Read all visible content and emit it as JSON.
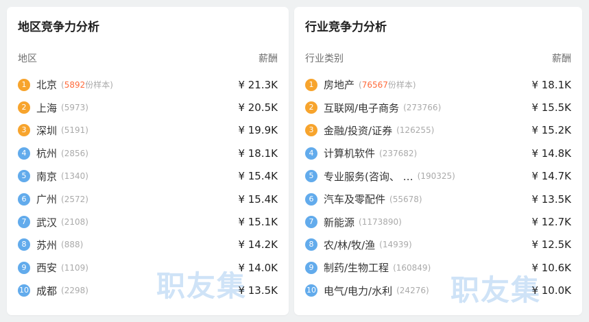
{
  "colors": {
    "page_bg": "#eff1f2",
    "panel_bg": "#ffffff",
    "title": "#1f1f1f",
    "header": "#6f6f6f",
    "name": "#333333",
    "count": "#aaaaaa",
    "salary": "#1f1f1f",
    "badge_orange": "#f7a42d",
    "badge_blue": "#62abec",
    "sample_hot": "#ff6a3a",
    "watermark": "#cfe3f7"
  },
  "format": {
    "count_open": "(",
    "count_close": ")"
  },
  "watermark_text": "职友集",
  "panels": [
    {
      "title": "地区竞争力分析",
      "col_name": "地区",
      "col_salary": "薪酬",
      "rows": [
        {
          "rank": "1",
          "name": "北京",
          "samples": "5892",
          "samples_suffix": "份样本",
          "salary": "¥ 21.3K",
          "badge": "orange"
        },
        {
          "rank": "2",
          "name": "上海",
          "samples": "5973",
          "samples_suffix": "",
          "salary": "¥ 20.5K",
          "badge": "orange"
        },
        {
          "rank": "3",
          "name": "深圳",
          "samples": "5191",
          "samples_suffix": "",
          "salary": "¥ 19.9K",
          "badge": "orange"
        },
        {
          "rank": "4",
          "name": "杭州",
          "samples": "2856",
          "samples_suffix": "",
          "salary": "¥ 18.1K",
          "badge": "blue"
        },
        {
          "rank": "5",
          "name": "南京",
          "samples": "1340",
          "samples_suffix": "",
          "salary": "¥ 15.4K",
          "badge": "blue"
        },
        {
          "rank": "6",
          "name": "广州",
          "samples": "2572",
          "samples_suffix": "",
          "salary": "¥ 15.4K",
          "badge": "blue"
        },
        {
          "rank": "7",
          "name": "武汉",
          "samples": "2108",
          "samples_suffix": "",
          "salary": "¥ 15.1K",
          "badge": "blue"
        },
        {
          "rank": "8",
          "name": "苏州",
          "samples": "888",
          "samples_suffix": "",
          "salary": "¥ 14.2K",
          "badge": "blue"
        },
        {
          "rank": "9",
          "name": "西安",
          "samples": "1109",
          "samples_suffix": "",
          "salary": "¥ 14.0K",
          "badge": "blue"
        },
        {
          "rank": "10",
          "name": "成都",
          "samples": "2298",
          "samples_suffix": "",
          "salary": "¥ 13.5K",
          "badge": "blue"
        }
      ]
    },
    {
      "title": "行业竞争力分析",
      "col_name": "行业类别",
      "col_salary": "薪酬",
      "rows": [
        {
          "rank": "1",
          "name": "房地产",
          "samples": "76567",
          "samples_suffix": "份样本",
          "salary": "¥ 18.1K",
          "badge": "orange"
        },
        {
          "rank": "2",
          "name": "互联网/电子商务",
          "samples": "273766",
          "samples_suffix": "",
          "salary": "¥ 15.5K",
          "badge": "orange"
        },
        {
          "rank": "3",
          "name": "金融/投资/证券",
          "samples": "126255",
          "samples_suffix": "",
          "salary": "¥ 15.2K",
          "badge": "orange"
        },
        {
          "rank": "4",
          "name": "计算机软件",
          "samples": "237682",
          "samples_suffix": "",
          "salary": "¥ 14.8K",
          "badge": "blue"
        },
        {
          "rank": "5",
          "name": "专业服务(咨询、 …  ",
          "samples": "190325",
          "samples_suffix": "",
          "salary": "¥ 14.7K",
          "badge": "blue"
        },
        {
          "rank": "6",
          "name": "汽车及零配件",
          "samples": "55678",
          "samples_suffix": "",
          "salary": "¥ 13.5K",
          "badge": "blue"
        },
        {
          "rank": "7",
          "name": "新能源",
          "samples": "1173890",
          "samples_suffix": "",
          "salary": "¥ 12.7K",
          "badge": "blue"
        },
        {
          "rank": "8",
          "name": "农/林/牧/渔",
          "samples": "14939",
          "samples_suffix": "",
          "salary": "¥ 12.5K",
          "badge": "blue"
        },
        {
          "rank": "9",
          "name": "制药/生物工程",
          "samples": "160849",
          "samples_suffix": "",
          "salary": "¥ 10.6K",
          "badge": "blue"
        },
        {
          "rank": "10",
          "name": "电气/电力/水利",
          "samples": "24276",
          "samples_suffix": "",
          "salary": "¥ 10.0K",
          "badge": "blue"
        }
      ]
    }
  ]
}
